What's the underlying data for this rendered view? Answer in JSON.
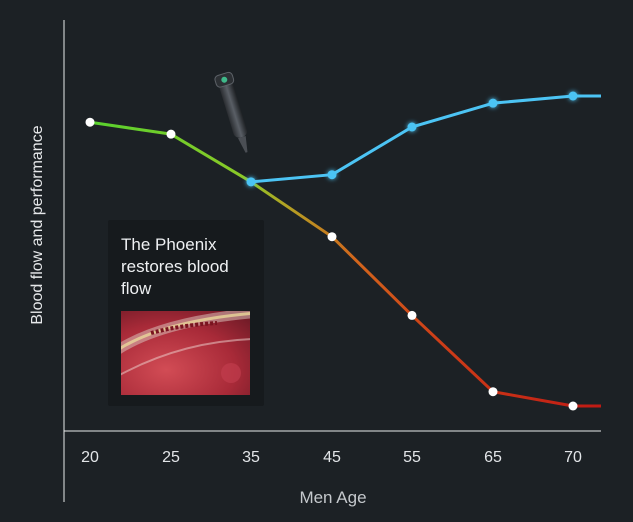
{
  "chart_data": {
    "type": "line",
    "xlabel": "Men Age",
    "ylabel": "Blood flow and performance",
    "categories": [
      "20",
      "25",
      "35",
      "45",
      "55",
      "65",
      "70"
    ],
    "series": [
      {
        "values": [
          88,
          83,
          63,
          40,
          7,
          -25,
          -31
        ],
        "style": "declining line, green to orange to red gradient, white markers"
      },
      {
        "values": [
          null,
          null,
          63,
          66,
          86,
          96,
          99
        ],
        "style": "recovering line, light blue with blue markers, starts at 35"
      }
    ],
    "ylim": [
      -40,
      100
    ],
    "grid": false,
    "legend": "none",
    "colors": {
      "green": "#58d22e",
      "yellow": "#a7a426",
      "orange": "#d2661c",
      "red": "#c01a14",
      "blue": "#4cc4f4",
      "background": "#1c2125"
    }
  },
  "callout": {
    "text": "The Phoenix restores blood flow",
    "image": "blood-vessel-image"
  },
  "device": {
    "icon": "device-icon"
  }
}
